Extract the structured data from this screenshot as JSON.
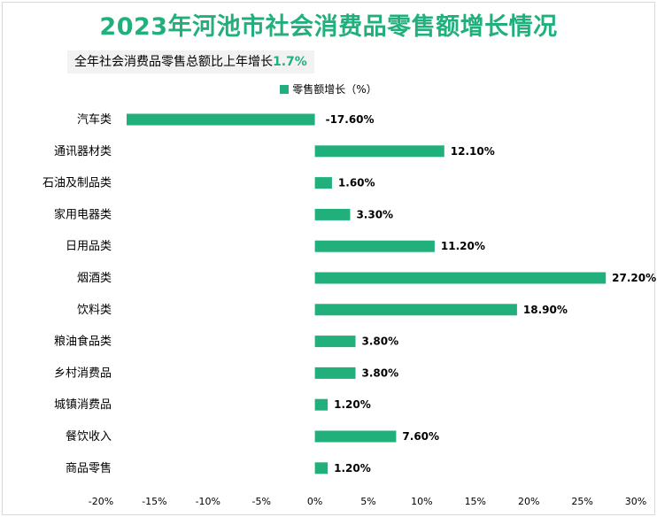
{
  "header": {
    "title": "2023年河池市社会消费品零售额增长情况",
    "subtitle_prefix": "全年社会消费品零售总额比上年增长",
    "subtitle_value": "1.7%"
  },
  "colors": {
    "accent": "#21b07c",
    "bar": "#21b07c"
  },
  "chart_data": {
    "type": "bar",
    "orientation": "horizontal",
    "categories": [
      "汽车类",
      "通讯器材类",
      "石油及制品类",
      "家用电器类",
      "日用品类",
      "烟酒类",
      "饮料类",
      "粮油食品类",
      "乡村消费品",
      "城镇消费品",
      "餐饮收入",
      "商品零售"
    ],
    "series": [
      {
        "name": "零售额增长（%）",
        "values": [
          -17.6,
          12.1,
          1.6,
          3.3,
          11.2,
          27.2,
          18.9,
          3.8,
          3.8,
          1.2,
          7.6,
          1.2
        ],
        "labels": [
          "-17.60%",
          "12.10%",
          "1.60%",
          "3.30%",
          "11.20%",
          "27.20%",
          "18.90%",
          "3.80%",
          "3.80%",
          "1.20%",
          "7.60%",
          "1.20%"
        ]
      }
    ],
    "xlim": [
      -20,
      30
    ],
    "xticks": [
      -20,
      -15,
      -10,
      -5,
      0,
      5,
      10,
      15,
      20,
      25,
      30
    ],
    "xtick_labels": [
      "-20%",
      "-15%",
      "-10%",
      "-5%",
      "0%",
      "5%",
      "10%",
      "15%",
      "20%",
      "25%",
      "30%"
    ],
    "grid": false,
    "legend": "top-center"
  }
}
